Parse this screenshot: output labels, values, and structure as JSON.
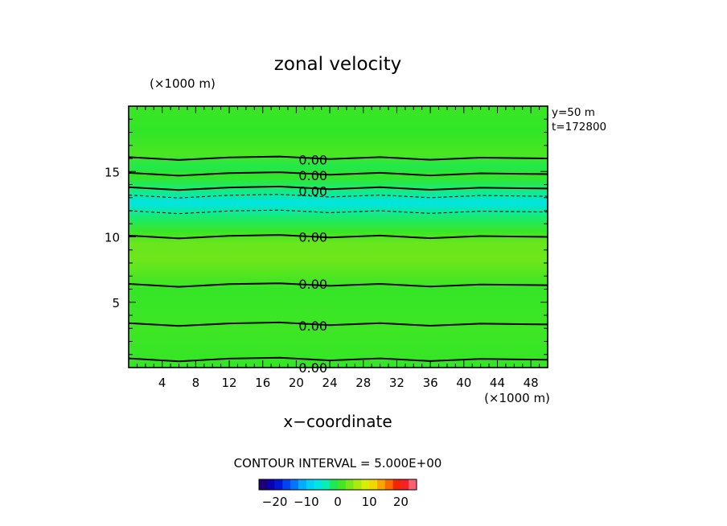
{
  "chart_data": {
    "type": "heatmap",
    "title": "zonal velocity",
    "xlabel": "x−coordinate",
    "x_unit": "(×1000 m)",
    "y_unit": "(×1000 m)",
    "annotation_lines": [
      "y=50  m",
      "t=172800"
    ],
    "xlim": [
      0,
      50
    ],
    "ylim": [
      0,
      20
    ],
    "x_ticks": [
      4,
      8,
      12,
      16,
      20,
      24,
      28,
      32,
      36,
      40,
      44,
      48
    ],
    "y_ticks": [
      5,
      10,
      15
    ],
    "contour_interval_label": "CONTOUR INTERVAL = 5.000E+00",
    "contour_label": "0.00",
    "contour_label_y": [
      0.0,
      3.2,
      6.4,
      10.0,
      13.5,
      14.7,
      15.9
    ],
    "contours_zero_y": [
      0.6,
      3.3,
      6.3,
      10.0,
      13.7,
      14.8,
      16.0
    ],
    "contours_negative_y": [
      11.9,
      13.1
    ],
    "colorbar": {
      "min": -25,
      "max": 25,
      "step": 2.5,
      "tick_values": [
        -20,
        -10,
        0,
        10,
        20
      ],
      "tick_labels": [
        "−20",
        "−10",
        "0",
        "10",
        "20"
      ]
    },
    "field_bands": [
      {
        "y": 0,
        "value": 0.5
      },
      {
        "y": 3,
        "value": 1.0
      },
      {
        "y": 6,
        "value": 0.6
      },
      {
        "y": 8.2,
        "value": 3.2
      },
      {
        "y": 9.5,
        "value": 3.0
      },
      {
        "y": 10.4,
        "value": 0.8
      },
      {
        "y": 11.5,
        "value": -2.0
      },
      {
        "y": 12.6,
        "value": -6.5
      },
      {
        "y": 13.5,
        "value": -2.5
      },
      {
        "y": 14.6,
        "value": 0.5
      },
      {
        "y": 15.4,
        "value": -1.0
      },
      {
        "y": 16.3,
        "value": 1.6
      },
      {
        "y": 18,
        "value": 0.4
      },
      {
        "y": 20,
        "value": 0.8
      }
    ]
  }
}
